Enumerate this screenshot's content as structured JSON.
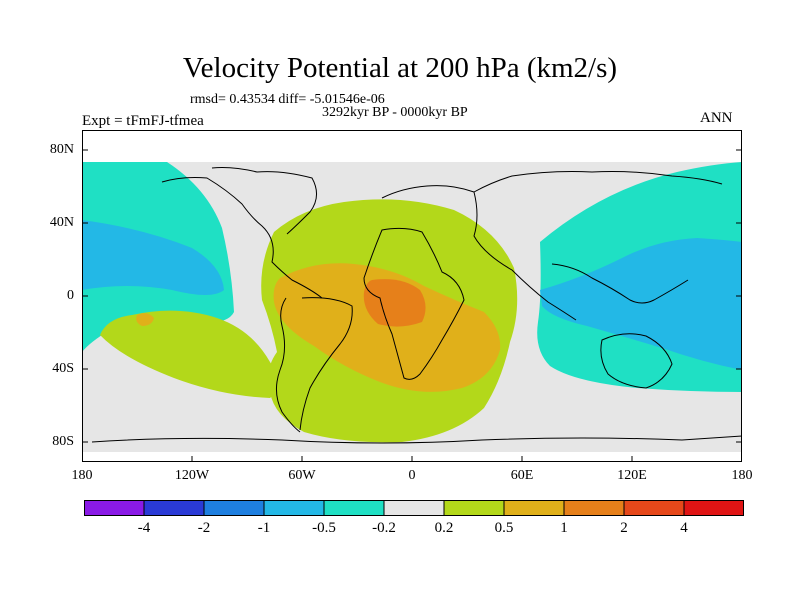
{
  "title": "Velocity Potential at 200 hPa (km2/s)",
  "stats": "rmsd= 0.43534 diff= -5.01546e-06",
  "period": "3292kyr BP - 0000kyr BP",
  "experiment": "Expt = tFmFJ-tfmea",
  "season": "ANN",
  "lat_labels": [
    "80N",
    "40N",
    "0",
    "40S",
    "80S"
  ],
  "lon_labels": [
    "180",
    "120W",
    "60W",
    "0",
    "60E",
    "120E",
    "180"
  ],
  "colorbar": {
    "labels": [
      "-4",
      "-2",
      "-1",
      "-0.5",
      "-0.2",
      "0.2",
      "0.5",
      "1",
      "2",
      "4"
    ],
    "colors": [
      "#8a1ae6",
      "#2a3ad6",
      "#1e7fe0",
      "#23b8e6",
      "#1fe0c4",
      "#e6e6e6",
      "#b3d81a",
      "#e0b01a",
      "#e6801a",
      "#e6481a",
      "#e01414"
    ]
  },
  "colors": {
    "neutral": "#e6e6e6",
    "neg_low": "#1fe0c4",
    "neg_mid": "#23b8e6",
    "pos_low": "#b3d81a",
    "pos_mid": "#e0b01a",
    "pos_high": "#e6801a"
  }
}
